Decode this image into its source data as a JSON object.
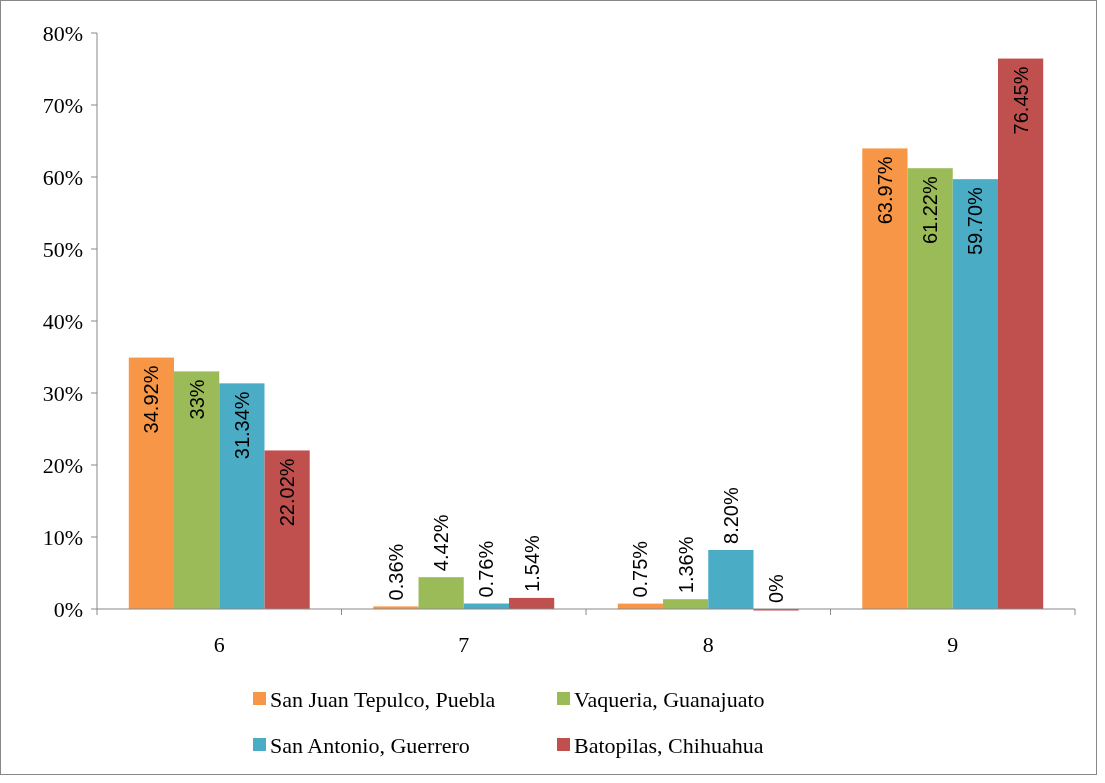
{
  "chart_data": {
    "type": "bar",
    "categories": [
      "6",
      "7",
      "8",
      "9"
    ],
    "series": [
      {
        "name": "San Juan Tepulco, Puebla",
        "color": "#f79646",
        "values": [
          34.92,
          0.36,
          0.75,
          63.97
        ],
        "value_labels": [
          "34.92%",
          "0.36%",
          "0.75%",
          "63.97%"
        ]
      },
      {
        "name": "Vaqueria, Guanajuato",
        "color": "#9bbb59",
        "values": [
          33,
          4.42,
          1.36,
          61.22
        ],
        "value_labels": [
          "33%",
          "4.42%",
          "1.36%",
          "61.22%"
        ]
      },
      {
        "name": "San Antonio, Guerrero",
        "color": "#4bacc6",
        "values": [
          31.34,
          0.76,
          8.2,
          59.7
        ],
        "value_labels": [
          "31.34%",
          "0.76%",
          "8.20%",
          "59.70%"
        ]
      },
      {
        "name": "Batopilas, Chihuahua",
        "color": "#c0504d",
        "values": [
          22.02,
          1.54,
          0,
          76.45
        ],
        "value_labels": [
          "22.02%",
          "1.54%",
          "0%",
          "76.45%"
        ]
      }
    ],
    "ylim": [
      0,
      80
    ],
    "yticks": [
      {
        "value": 0,
        "label": "0%"
      },
      {
        "value": 10,
        "label": "10%"
      },
      {
        "value": 20,
        "label": "20%"
      },
      {
        "value": 30,
        "label": "30%"
      },
      {
        "value": 40,
        "label": "40%"
      },
      {
        "value": 50,
        "label": "50%"
      },
      {
        "value": 60,
        "label": "60%"
      },
      {
        "value": 70,
        "label": "70%"
      },
      {
        "value": 80,
        "label": "80%"
      }
    ],
    "grid": false,
    "legend": "bottom"
  }
}
